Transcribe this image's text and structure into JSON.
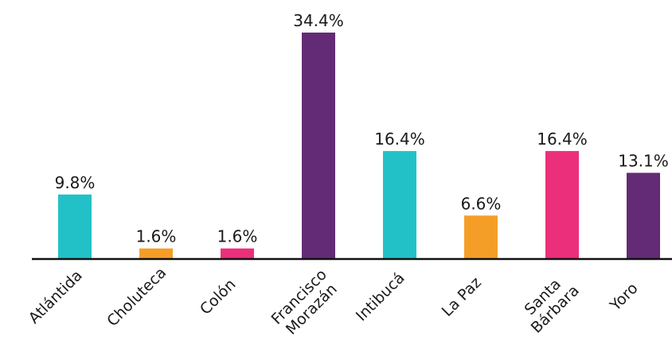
{
  "chart_data": {
    "type": "bar",
    "categories": [
      [
        "Atlántida"
      ],
      [
        "Choluteca"
      ],
      [
        "Colón"
      ],
      [
        "Francisco",
        "Morazán"
      ],
      [
        "Intibucá"
      ],
      [
        "La Paz"
      ],
      [
        "Santa",
        "Bárbara"
      ],
      [
        "Yoro"
      ]
    ],
    "values": [
      9.8,
      1.6,
      1.6,
      34.4,
      16.4,
      6.6,
      16.4,
      13.1
    ],
    "value_labels": [
      "9.8%",
      "1.6%",
      "1.6%",
      "34.4%",
      "16.4%",
      "6.6%",
      "16.4%",
      "13.1%"
    ],
    "bar_colors": [
      "#22C1C8",
      "#F59E27",
      "#EC2F7B",
      "#632B75",
      "#22C1C8",
      "#F59E27",
      "#EC2F7B",
      "#632B75"
    ],
    "ylim": [
      0,
      34.4
    ],
    "axis_color": "#111111",
    "grid": false,
    "legend": false
  }
}
